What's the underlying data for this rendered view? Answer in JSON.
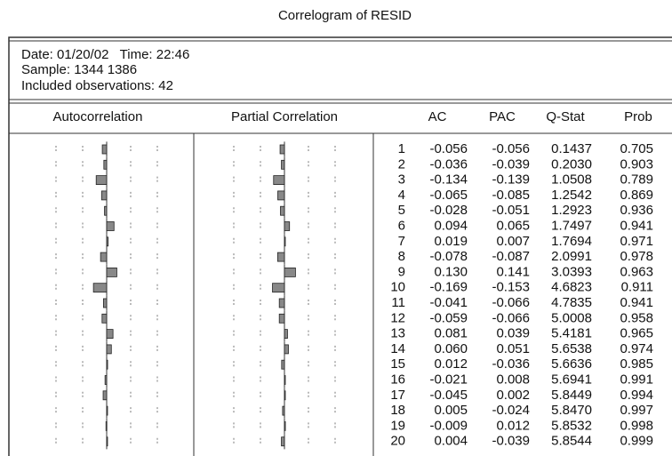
{
  "window": {
    "title": "Correlogram of RESID"
  },
  "info": {
    "date": "Date: 01/20/02   Time: 22:46",
    "sample": "Sample: 1344 1386",
    "observations": "Included observations: 42"
  },
  "table": {
    "headers": [
      "Autocorrelation",
      "Partial Correlation",
      "AC",
      "PAC",
      "Q-Stat",
      "Prob"
    ],
    "rows": [
      [
        "1",
        "-0.056",
        "-0.056",
        "0.1437",
        "0.705"
      ],
      [
        "2",
        "-0.036",
        "-0.039",
        "0.2030",
        "0.903"
      ],
      [
        "3",
        "-0.134",
        "-0.139",
        "1.0508",
        "0.789"
      ],
      [
        "4",
        "-0.065",
        "-0.085",
        "1.2542",
        "0.869"
      ],
      [
        "5",
        "-0.028",
        "-0.051",
        "1.2923",
        "0.936"
      ],
      [
        "6",
        "0.094",
        "0.065",
        "1.7497",
        "0.941"
      ],
      [
        "7",
        "0.019",
        "0.007",
        "1.7694",
        "0.971"
      ],
      [
        "8",
        "-0.078",
        "-0.087",
        "2.0991",
        "0.978"
      ],
      [
        "9",
        "0.130",
        "0.141",
        "3.0393",
        "0.963"
      ],
      [
        "10",
        "-0.169",
        "-0.153",
        "4.6823",
        "0.911"
      ],
      [
        "11",
        "-0.041",
        "-0.066",
        "4.7835",
        "0.941"
      ],
      [
        "12",
        "-0.059",
        "-0.066",
        "5.0008",
        "0.958"
      ],
      [
        "13",
        "0.081",
        "0.039",
        "5.4181",
        "0.965"
      ],
      [
        "14",
        "0.060",
        "0.051",
        "5.6538",
        "0.974"
      ],
      [
        "15",
        "0.012",
        "-0.036",
        "5.6636",
        "0.985"
      ],
      [
        "16",
        "-0.021",
        "0.008",
        "5.6941",
        "0.991"
      ],
      [
        "17",
        "-0.045",
        "0.002",
        "5.8449",
        "0.994"
      ],
      [
        "18",
        "0.005",
        "-0.024",
        "5.8470",
        "0.997"
      ],
      [
        "19",
        "-0.009",
        "0.012",
        "5.8532",
        "0.998"
      ],
      [
        "20",
        "0.004",
        "-0.039",
        "5.8544",
        "0.999"
      ]
    ]
  }
}
